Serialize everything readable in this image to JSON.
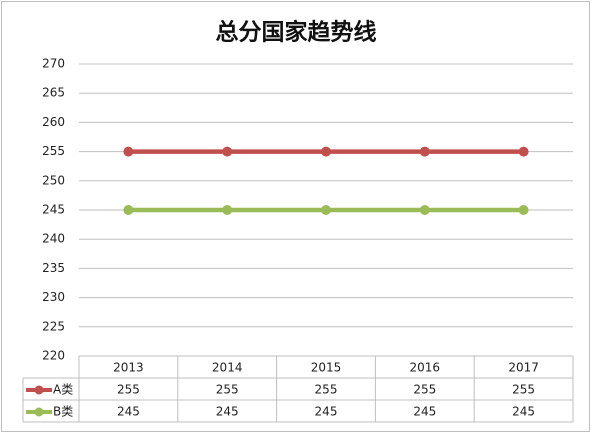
{
  "chart_data": {
    "type": "line",
    "title": "总分国家趋势线",
    "categories": [
      "2013",
      "2014",
      "2015",
      "2016",
      "2017"
    ],
    "series": [
      {
        "name": "A类",
        "color": "#c0504d",
        "values": [
          255,
          255,
          255,
          255,
          255
        ]
      },
      {
        "name": "B类",
        "color": "#9bbb59",
        "values": [
          245,
          245,
          245,
          245,
          245
        ]
      }
    ],
    "ylim": [
      220,
      270
    ],
    "yticks": [
      220,
      225,
      230,
      235,
      240,
      245,
      250,
      255,
      260,
      265,
      270
    ],
    "grid": true,
    "data_table": true
  }
}
